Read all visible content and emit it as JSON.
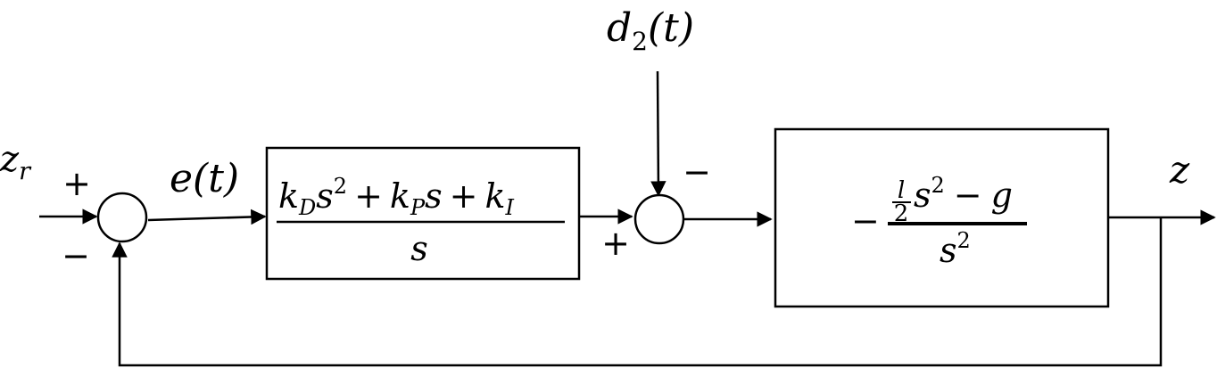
{
  "signals": {
    "reference": {
      "base": "z",
      "sub": "r"
    },
    "error": "e(t)",
    "disturbance": {
      "base": "d",
      "sub": "2",
      "arg": "(t)"
    },
    "output": "z"
  },
  "signs": {
    "junction1_input": "+",
    "junction1_feedback": "−",
    "junction2_disturbance": "−",
    "junction2_controller": "+"
  },
  "controller": {
    "numerator_terms": [
      {
        "coef": "k",
        "sub": "D",
        "var": "s",
        "exp": "2"
      },
      {
        "coef": "k",
        "sub": "P",
        "var": "s",
        "exp": ""
      },
      {
        "coef": "k",
        "sub": "I",
        "var": "",
        "exp": ""
      }
    ],
    "operators": [
      "+",
      "+"
    ],
    "denominator": "s"
  },
  "plant": {
    "sign": "−",
    "numerator": {
      "frac_num": "l",
      "frac_den": "2",
      "var": "s",
      "exp": "2",
      "operator": "−",
      "const": "g"
    },
    "denominator": {
      "var": "s",
      "exp": "2"
    }
  }
}
